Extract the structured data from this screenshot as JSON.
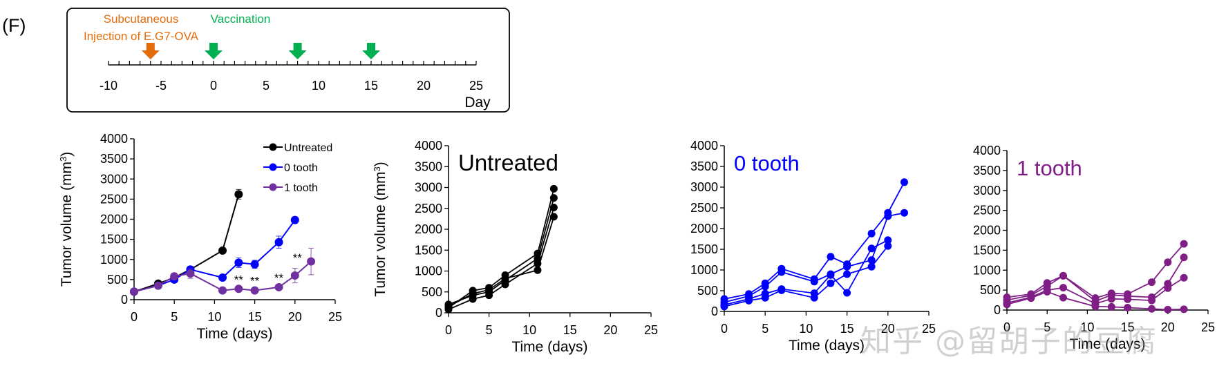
{
  "panel_label": "(F)",
  "timeline": {
    "event_injection": [
      "Subcutaneous",
      "Injection of E.G7-OVA"
    ],
    "event_vaccination": "Vaccination",
    "injection_day": -6,
    "vaccination_days": [
      0,
      8,
      15
    ],
    "ticks": [
      -10,
      -5,
      0,
      5,
      10,
      15,
      20,
      25
    ],
    "unit_label": "Day",
    "injection_color": "#E36C0A",
    "vaccination_color": "#00B050"
  },
  "watermark": "知乎 @留胡子的豆腐",
  "chart_data": [
    {
      "type": "line",
      "ylabel": "Tumor volume (mm3)",
      "xlabel": "Time (days)",
      "xlim": [
        0,
        25
      ],
      "ylim": [
        0,
        4000
      ],
      "xticks": [
        0,
        5,
        10,
        15,
        20,
        25
      ],
      "yticks": [
        0,
        500,
        1000,
        1500,
        2000,
        2500,
        3000,
        3500,
        4000
      ],
      "legend": "top-right",
      "series": [
        {
          "name": "Untreated",
          "color": "#000000",
          "x": [
            0,
            3,
            5,
            7,
            11,
            13
          ],
          "y": [
            200,
            400,
            550,
            750,
            1220,
            2620
          ],
          "err": [
            0,
            40,
            60,
            80,
            70,
            120
          ]
        },
        {
          "name": "0 tooth",
          "color": "#0000FF",
          "x": [
            0,
            3,
            5,
            7,
            11,
            13,
            15,
            18,
            20
          ],
          "y": [
            200,
            350,
            500,
            750,
            550,
            920,
            880,
            1430,
            1980
          ],
          "err": [
            0,
            40,
            60,
            80,
            70,
            120,
            100,
            150,
            80
          ]
        },
        {
          "name": "1 tooth",
          "color": "#7030A0",
          "x": [
            0,
            3,
            5,
            7,
            11,
            13,
            15,
            18,
            20,
            22
          ],
          "y": [
            200,
            350,
            580,
            650,
            230,
            270,
            230,
            310,
            600,
            950
          ],
          "err": [
            0,
            60,
            80,
            120,
            50,
            50,
            40,
            50,
            180,
            330
          ]
        }
      ],
      "annotations": [
        {
          "x": 13,
          "y": 270,
          "text": "**"
        },
        {
          "x": 15,
          "y": 230,
          "text": "**"
        },
        {
          "x": 18,
          "y": 310,
          "text": "**"
        },
        {
          "x": 20.3,
          "y": 810,
          "text": "**"
        }
      ]
    },
    {
      "type": "line",
      "title": "Untreated",
      "ylabel": "Tumor volume (mm3)",
      "xlabel": "Time (days)",
      "xlim": [
        0,
        25
      ],
      "ylim": [
        0,
        4000
      ],
      "xticks": [
        0,
        5,
        10,
        15,
        20,
        25
      ],
      "yticks": [
        0,
        500,
        1000,
        1500,
        2000,
        2500,
        3000,
        3500,
        4000
      ],
      "color": "#000000",
      "x": [
        0,
        3,
        5,
        7,
        11,
        13
      ],
      "series": [
        {
          "values": [
            120,
            530,
            600,
            900,
            1420,
            2970
          ]
        },
        {
          "values": [
            200,
            420,
            500,
            780,
            1300,
            2750
          ]
        },
        {
          "values": [
            80,
            330,
            420,
            680,
            1180,
            2520
          ]
        },
        {
          "values": [
            150,
            460,
            550,
            820,
            1020,
            2300
          ]
        }
      ]
    },
    {
      "type": "line",
      "title": "0 tooth",
      "ylabel": "",
      "xlabel": "Time (days)",
      "xlim": [
        0,
        25
      ],
      "ylim": [
        0,
        4000
      ],
      "xticks": [
        0,
        5,
        10,
        15,
        20,
        25
      ],
      "yticks": [
        0,
        500,
        1000,
        1500,
        2000,
        2500,
        3000,
        3500,
        4000
      ],
      "color": "#0000FF",
      "x": [
        0,
        3,
        5,
        7,
        11,
        13,
        15,
        18,
        20,
        22
      ],
      "series": [
        {
          "values": [
            300,
            420,
            680,
            1030,
            780,
            1320,
            1140,
            1880,
            2380,
            3120
          ]
        },
        {
          "values": [
            220,
            370,
            600,
            950,
            720,
            900,
            1080,
            1240,
            2300,
            2380
          ]
        },
        {
          "values": [
            160,
            300,
            430,
            540,
            440,
            880,
            450,
            1520,
            1720,
            null
          ]
        },
        {
          "values": [
            120,
            260,
            330,
            510,
            330,
            680,
            900,
            1080,
            1580,
            null
          ]
        }
      ]
    },
    {
      "type": "line",
      "title": "1 tooth",
      "ylabel": "",
      "xlabel": "Time (days)",
      "xlim": [
        0,
        25
      ],
      "ylim": [
        0,
        4000
      ],
      "xticks": [
        0,
        5,
        10,
        15,
        20,
        25
      ],
      "yticks": [
        0,
        500,
        1000,
        1500,
        2000,
        2500,
        3000,
        3500,
        4000
      ],
      "color": "#7F1F86",
      "x": [
        0,
        3,
        5,
        7,
        11,
        13,
        15,
        18,
        20,
        22
      ],
      "series": [
        {
          "values": [
            320,
            400,
            680,
            860,
            300,
            420,
            400,
            700,
            1200,
            1660
          ]
        },
        {
          "values": [
            250,
            370,
            600,
            860,
            220,
            380,
            350,
            320,
            660,
            1320
          ]
        },
        {
          "values": [
            180,
            320,
            500,
            560,
            160,
            280,
            270,
            240,
            550,
            810
          ]
        },
        {
          "values": [
            140,
            300,
            460,
            310,
            90,
            80,
            60,
            30,
            10,
            20
          ]
        }
      ]
    }
  ]
}
